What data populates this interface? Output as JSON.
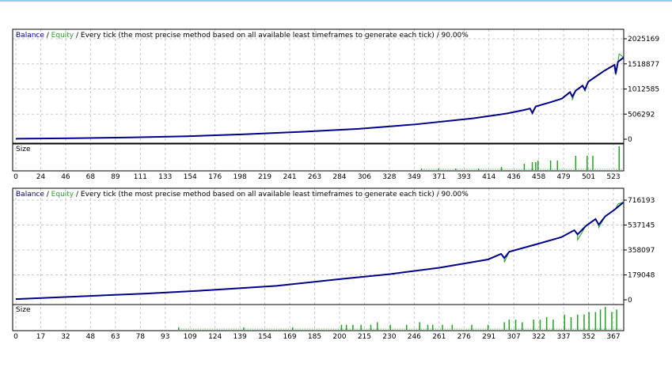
{
  "colors": {
    "balance": "#00008b",
    "equity": "#22a022",
    "volume": "#22a022",
    "grid": "#c8c8c8",
    "top_bar": "#7fd9e6"
  },
  "chart_data": [
    {
      "type": "line",
      "legend": {
        "balance": "Balance",
        "equity": "Equity",
        "separator": " / ",
        "description": "Every tick (the most precise method based on all available least timeframes to generate each tick) / 90.00%"
      },
      "volume_label": "Size",
      "y_ticks": [
        "2025169",
        "1518877",
        "1012585",
        "506292",
        "0"
      ],
      "ylim": [
        0,
        2025169
      ],
      "x_ticks": [
        "0",
        "24",
        "46",
        "68",
        "89",
        "111",
        "133",
        "154",
        "176",
        "198",
        "219",
        "241",
        "263",
        "284",
        "306",
        "328",
        "349",
        "371",
        "393",
        "414",
        "436",
        "458",
        "479",
        "501",
        "523"
      ],
      "xlim": [
        0,
        532
      ],
      "balance": [
        [
          0,
          10000
        ],
        [
          50,
          20000
        ],
        [
          100,
          35000
        ],
        [
          150,
          60000
        ],
        [
          200,
          100000
        ],
        [
          250,
          150000
        ],
        [
          300,
          210000
        ],
        [
          350,
          300000
        ],
        [
          400,
          420000
        ],
        [
          430,
          520000
        ],
        [
          445,
          590000
        ],
        [
          450,
          620000
        ],
        [
          452,
          530000
        ],
        [
          455,
          660000
        ],
        [
          470,
          760000
        ],
        [
          478,
          820000
        ],
        [
          485,
          950000
        ],
        [
          487,
          860000
        ],
        [
          490,
          980000
        ],
        [
          496,
          1080000
        ],
        [
          498,
          1000000
        ],
        [
          501,
          1160000
        ],
        [
          515,
          1380000
        ],
        [
          524,
          1500000
        ],
        [
          525,
          1320000
        ],
        [
          527,
          1560000
        ],
        [
          532,
          1650000
        ]
      ],
      "equity_spikes": [
        [
          452,
          500000
        ],
        [
          487,
          790000
        ],
        [
          498,
          960000
        ],
        [
          503,
          1200000
        ],
        [
          525,
          1290000
        ],
        [
          528,
          1720000
        ]
      ],
      "volume": [
        [
          355,
          1
        ],
        [
          370,
          1
        ],
        [
          385,
          1
        ],
        [
          405,
          1
        ],
        [
          425,
          2
        ],
        [
          445,
          4
        ],
        [
          452,
          5
        ],
        [
          455,
          5
        ],
        [
          457,
          6
        ],
        [
          468,
          6
        ],
        [
          474,
          6
        ],
        [
          490,
          9
        ],
        [
          500,
          9
        ],
        [
          505,
          9
        ],
        [
          528,
          15
        ]
      ]
    },
    {
      "type": "line",
      "legend": {
        "balance": "Balance",
        "equity": "Equity",
        "separator": " / ",
        "description": "Every tick (the most precise method based on all available least timeframes to generate each tick) / 90.00%"
      },
      "volume_label": "Size",
      "y_ticks": [
        "716193",
        "537145",
        "358097",
        "179048",
        "0"
      ],
      "ylim": [
        0,
        716193
      ],
      "x_ticks": [
        "0",
        "17",
        "32",
        "48",
        "63",
        "78",
        "93",
        "109",
        "124",
        "139",
        "154",
        "169",
        "185",
        "200",
        "215",
        "230",
        "246",
        "261",
        "276",
        "291",
        "307",
        "322",
        "337",
        "352",
        "367"
      ],
      "xlim": [
        0,
        373
      ],
      "balance": [
        [
          0,
          5000
        ],
        [
          40,
          25000
        ],
        [
          80,
          45000
        ],
        [
          120,
          70000
        ],
        [
          160,
          100000
        ],
        [
          200,
          150000
        ],
        [
          230,
          185000
        ],
        [
          260,
          230000
        ],
        [
          290,
          290000
        ],
        [
          298,
          330000
        ],
        [
          300,
          300000
        ],
        [
          303,
          345000
        ],
        [
          320,
          400000
        ],
        [
          335,
          450000
        ],
        [
          343,
          500000
        ],
        [
          345,
          470000
        ],
        [
          350,
          530000
        ],
        [
          356,
          580000
        ],
        [
          358,
          540000
        ],
        [
          362,
          600000
        ],
        [
          368,
          650000
        ],
        [
          373,
          700000
        ]
      ],
      "equity_spikes": [
        [
          300,
          270000
        ],
        [
          345,
          430000
        ],
        [
          358,
          520000
        ],
        [
          370,
          690000
        ]
      ],
      "volume": [
        [
          100,
          1
        ],
        [
          140,
          1
        ],
        [
          170,
          1
        ],
        [
          200,
          2
        ],
        [
          203,
          2
        ],
        [
          207,
          2
        ],
        [
          212,
          2
        ],
        [
          218,
          2
        ],
        [
          222,
          3
        ],
        [
          230,
          2
        ],
        [
          240,
          2
        ],
        [
          248,
          3
        ],
        [
          253,
          2
        ],
        [
          256,
          2
        ],
        [
          262,
          2
        ],
        [
          268,
          2
        ],
        [
          280,
          2
        ],
        [
          290,
          2
        ],
        [
          300,
          3
        ],
        [
          303,
          4
        ],
        [
          307,
          4
        ],
        [
          311,
          3
        ],
        [
          318,
          4
        ],
        [
          322,
          4
        ],
        [
          326,
          5
        ],
        [
          330,
          4
        ],
        [
          337,
          6
        ],
        [
          341,
          5
        ],
        [
          345,
          6
        ],
        [
          349,
          6
        ],
        [
          352,
          7
        ],
        [
          356,
          7
        ],
        [
          359,
          8
        ],
        [
          362,
          9
        ],
        [
          366,
          7
        ],
        [
          369,
          8
        ]
      ]
    }
  ]
}
